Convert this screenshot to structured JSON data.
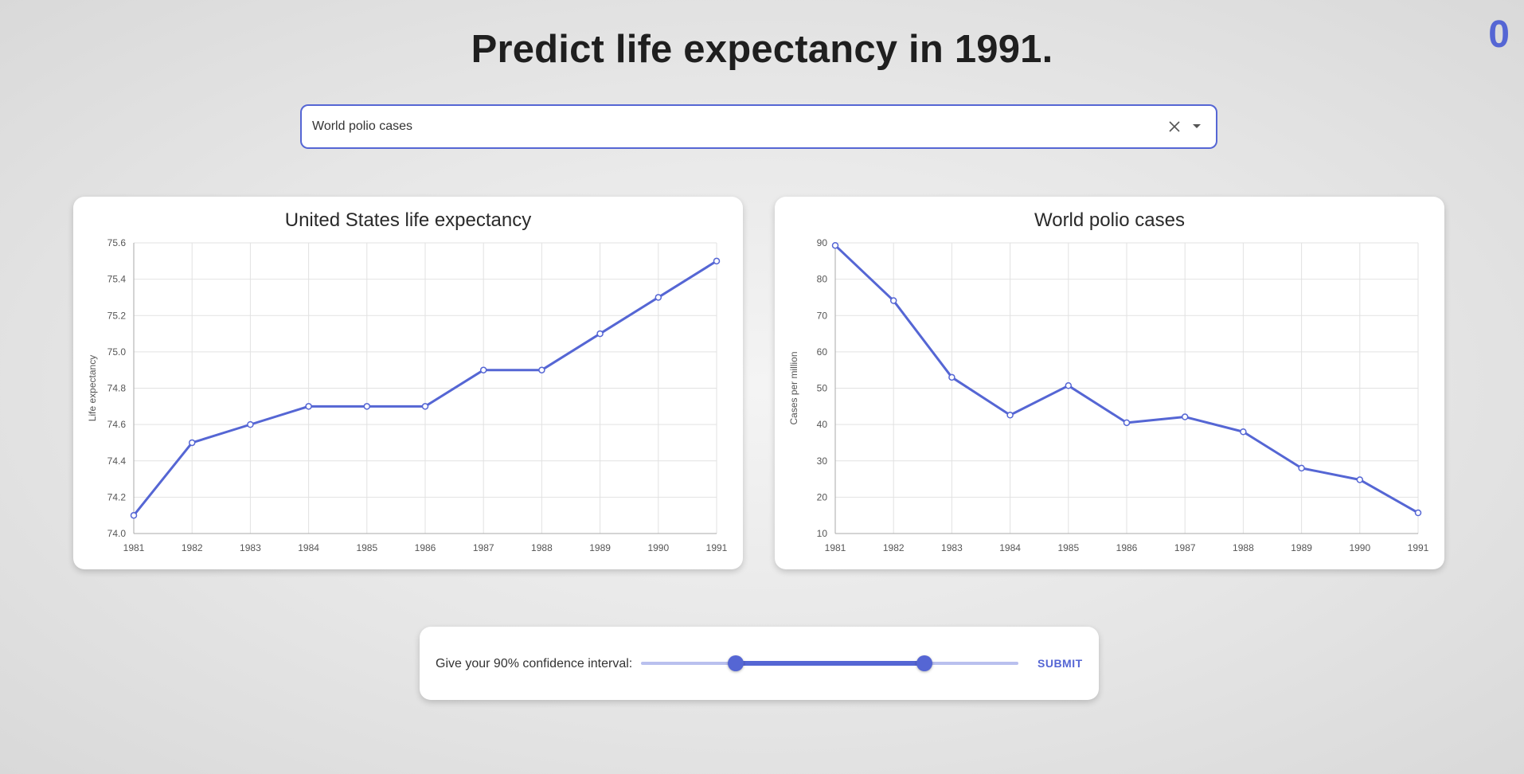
{
  "score": "0",
  "title": "Predict life expectancy in 1991.",
  "selector": {
    "value": "World polio cases"
  },
  "charts": [
    {
      "title": "United States life expectancy",
      "ylabel": "Life expectancy"
    },
    {
      "title": "World polio cases",
      "ylabel": "Cases per million"
    }
  ],
  "chart_data": [
    {
      "type": "line",
      "title": "United States life expectancy",
      "xlabel": "",
      "ylabel": "Life expectancy",
      "x": [
        1981,
        1982,
        1983,
        1984,
        1985,
        1986,
        1987,
        1988,
        1989,
        1990,
        1991
      ],
      "y": [
        74.1,
        74.5,
        74.6,
        74.7,
        74.7,
        74.7,
        74.9,
        74.9,
        75.1,
        75.3,
        75.5
      ],
      "ylim": [
        74.0,
        75.6
      ],
      "yticks": [
        "74.0",
        "74.2",
        "74.4",
        "74.6",
        "74.8",
        "75.0",
        "75.2",
        "75.4",
        "75.6"
      ],
      "grid": true,
      "color": "#5566d4"
    },
    {
      "type": "line",
      "title": "World polio cases",
      "xlabel": "",
      "ylabel": "Cases per million",
      "x": [
        1981,
        1982,
        1983,
        1984,
        1985,
        1986,
        1987,
        1988,
        1989,
        1990,
        1991
      ],
      "y": [
        89.3,
        74.1,
        53.0,
        42.6,
        50.7,
        40.5,
        42.1,
        38.0,
        28.0,
        24.8,
        15.7
      ],
      "ylim": [
        10,
        90
      ],
      "yticks": [
        "10",
        "20",
        "30",
        "40",
        "50",
        "60",
        "70",
        "80",
        "90"
      ],
      "grid": true,
      "color": "#5566d4"
    }
  ],
  "confidence": {
    "label": "Give your 90% confidence interval:",
    "low_fraction": 0.25,
    "high_fraction": 0.75
  },
  "submit_label": "SUBMIT",
  "colors": {
    "accent": "#5566d4",
    "rail": "#b9c0ee"
  }
}
